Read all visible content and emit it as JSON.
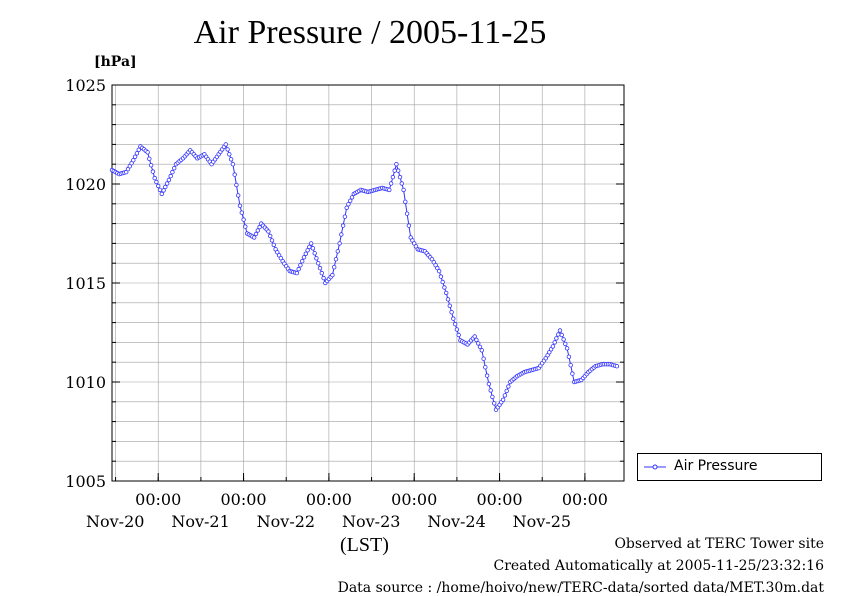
{
  "chart_data": {
    "type": "line",
    "title": "Air Pressure / 2005-11-25",
    "ylabel": "[hPa]",
    "xlabel": "(LST)",
    "ylim": [
      1005,
      1025
    ],
    "xlim": [
      "2005-11-19 11:00",
      "2005-11-25 11:00"
    ],
    "y_ticks": [
      "1005",
      "1010",
      "1015",
      "1020",
      "1025"
    ],
    "x_ticks": [
      {
        "time": "00:00",
        "date": "Nov-20"
      },
      {
        "time": "00:00",
        "date": "Nov-21"
      },
      {
        "time": "00:00",
        "date": "Nov-22"
      },
      {
        "time": "00:00",
        "date": "Nov-23"
      },
      {
        "time": "00:00",
        "date": "Nov-24"
      },
      {
        "time": "00:00",
        "date": "Nov-25"
      }
    ],
    "grid": true,
    "legend_position": "right",
    "series": [
      {
        "name": "Air Pressure",
        "color": "#3333ff",
        "points": [
          [
            "2005-11-19 11:00",
            1020.7
          ],
          [
            "2005-11-19 13:00",
            1020.5
          ],
          [
            "2005-11-19 15:00",
            1020.6
          ],
          [
            "2005-11-19 17:00",
            1021.2
          ],
          [
            "2005-11-19 19:00",
            1021.9
          ],
          [
            "2005-11-19 21:00",
            1021.6
          ],
          [
            "2005-11-19 23:00",
            1020.3
          ],
          [
            "2005-11-20 01:00",
            1019.5
          ],
          [
            "2005-11-20 03:00",
            1020.2
          ],
          [
            "2005-11-20 05:00",
            1021.0
          ],
          [
            "2005-11-20 07:00",
            1021.3
          ],
          [
            "2005-11-20 09:00",
            1021.7
          ],
          [
            "2005-11-20 11:00",
            1021.3
          ],
          [
            "2005-11-20 13:00",
            1021.5
          ],
          [
            "2005-11-20 15:00",
            1021.0
          ],
          [
            "2005-11-20 17:00",
            1021.5
          ],
          [
            "2005-11-20 19:00",
            1022.0
          ],
          [
            "2005-11-20 21:00",
            1021.0
          ],
          [
            "2005-11-20 23:00",
            1018.9
          ],
          [
            "2005-11-21 01:00",
            1017.5
          ],
          [
            "2005-11-21 03:00",
            1017.3
          ],
          [
            "2005-11-21 05:00",
            1018.0
          ],
          [
            "2005-11-21 07:00",
            1017.6
          ],
          [
            "2005-11-21 09:00",
            1016.7
          ],
          [
            "2005-11-21 11:00",
            1016.1
          ],
          [
            "2005-11-21 13:00",
            1015.6
          ],
          [
            "2005-11-21 15:00",
            1015.5
          ],
          [
            "2005-11-21 17:00",
            1016.3
          ],
          [
            "2005-11-21 19:00",
            1017.0
          ],
          [
            "2005-11-21 21:00",
            1016.0
          ],
          [
            "2005-11-21 23:00",
            1015.0
          ],
          [
            "2005-11-22 01:00",
            1015.4
          ],
          [
            "2005-11-22 03:00",
            1017.0
          ],
          [
            "2005-11-22 05:00",
            1018.8
          ],
          [
            "2005-11-22 07:00",
            1019.5
          ],
          [
            "2005-11-22 09:00",
            1019.7
          ],
          [
            "2005-11-22 11:00",
            1019.6
          ],
          [
            "2005-11-22 13:00",
            1019.7
          ],
          [
            "2005-11-22 15:00",
            1019.8
          ],
          [
            "2005-11-22 17:00",
            1019.7
          ],
          [
            "2005-11-22 19:00",
            1021.0
          ],
          [
            "2005-11-22 21:00",
            1019.7
          ],
          [
            "2005-11-22 23:00",
            1017.3
          ],
          [
            "2005-11-23 01:00",
            1016.7
          ],
          [
            "2005-11-23 03:00",
            1016.6
          ],
          [
            "2005-11-23 05:00",
            1016.2
          ],
          [
            "2005-11-23 07:00",
            1015.6
          ],
          [
            "2005-11-23 09:00",
            1014.5
          ],
          [
            "2005-11-23 11:00",
            1013.2
          ],
          [
            "2005-11-23 13:00",
            1012.1
          ],
          [
            "2005-11-23 15:00",
            1011.9
          ],
          [
            "2005-11-23 17:00",
            1012.3
          ],
          [
            "2005-11-23 19:00",
            1011.6
          ],
          [
            "2005-11-23 21:00",
            1009.9
          ],
          [
            "2005-11-23 23:00",
            1008.6
          ],
          [
            "2005-11-24 01:00",
            1009.1
          ],
          [
            "2005-11-24 03:00",
            1010.0
          ],
          [
            "2005-11-24 05:00",
            1010.3
          ],
          [
            "2005-11-24 07:00",
            1010.5
          ],
          [
            "2005-11-24 09:00",
            1010.6
          ],
          [
            "2005-11-24 11:00",
            1010.7
          ],
          [
            "2005-11-24 13:00",
            1011.2
          ],
          [
            "2005-11-24 15:00",
            1011.8
          ],
          [
            "2005-11-24 17:00",
            1012.6
          ],
          [
            "2005-11-24 19:00",
            1011.7
          ],
          [
            "2005-11-24 21:00",
            1010.0
          ],
          [
            "2005-11-24 23:00",
            1010.1
          ],
          [
            "2005-11-25 01:00",
            1010.5
          ],
          [
            "2005-11-25 03:00",
            1010.8
          ],
          [
            "2005-11-25 05:00",
            1010.9
          ],
          [
            "2005-11-25 07:00",
            1010.9
          ],
          [
            "2005-11-25 09:00",
            1010.8
          ]
        ]
      }
    ]
  },
  "legend": {
    "label": "Air Pressure"
  },
  "footer": {
    "observed": "Observed at TERC Tower site",
    "created": "Created Automatically at 2005-11-25/23:32:16",
    "source": "Data source : /home/hoivo/new/TERC-data/sorted  data/MET.30m.dat"
  }
}
